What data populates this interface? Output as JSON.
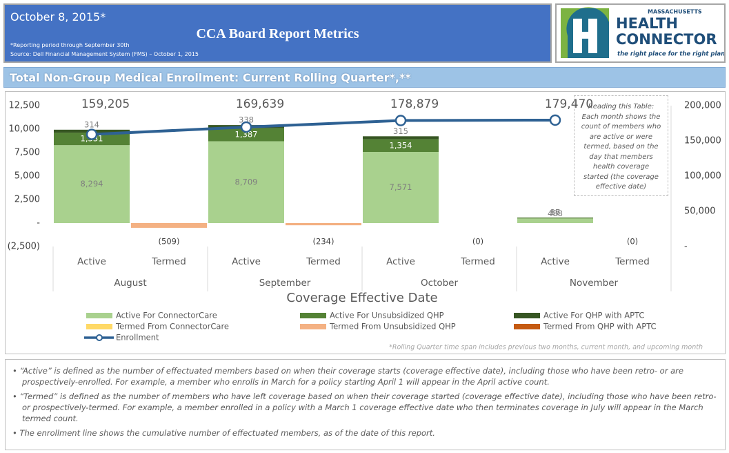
{
  "header": {
    "date": "October 8, 2015*",
    "title": "CCA Board Report Metrics",
    "reporting_note": "*Reporting period through September 30th",
    "source": "Source: Dell Financial Management System (FMS) – October 1, 2015"
  },
  "logo": {
    "state": "MASSACHUSETTS",
    "line1": "HEALTH",
    "line2": "CONNECTOR",
    "tagline": "the right place for the right plan"
  },
  "section_title": "Total Non-Group Medical Enrollment: Current Rolling Quarter*,**",
  "chart_data": {
    "type": "bar",
    "stacked": true,
    "categories": [
      "Active",
      "Termed",
      "Active",
      "Termed",
      "Active",
      "Termed",
      "Active",
      "Termed"
    ],
    "category_groups": [
      "August",
      "September",
      "October",
      "November"
    ],
    "x_label": "Coverage Effective Date",
    "ylim": [
      -2500,
      12500
    ],
    "yticks": [
      {
        "value": 12500,
        "label": "12,500"
      },
      {
        "value": 10000,
        "label": "10,000"
      },
      {
        "value": 7500,
        "label": "7,500"
      },
      {
        "value": 5000,
        "label": "5,000"
      },
      {
        "value": 2500,
        "label": "2,500"
      },
      {
        "value": 0,
        "label": "-"
      },
      {
        "value": -2500,
        "label": "(2,500)"
      }
    ],
    "y2lim": [
      0,
      200000
    ],
    "y2ticks": [
      {
        "value": 200000,
        "label": "200,000"
      },
      {
        "value": 150000,
        "label": "150,000"
      },
      {
        "value": 100000,
        "label": "100,000"
      },
      {
        "value": 50000,
        "label": "50,000"
      },
      {
        "value": 0,
        "label": "-"
      }
    ],
    "series": [
      {
        "name": "Active For ConnectorCare",
        "color": "#a9d18e",
        "values": [
          8294,
          null,
          8709,
          null,
          7571,
          null,
          488,
          null
        ],
        "value_labels": [
          "8,294",
          null,
          "8,709",
          null,
          "7,571",
          null,
          "488",
          null
        ]
      },
      {
        "name": "Active For Unsubsidized QHP",
        "color": "#548235",
        "values": [
          1331,
          null,
          1387,
          null,
          1354,
          null,
          86,
          null
        ],
        "value_labels": [
          "1,331",
          null,
          "1,387",
          null,
          "1,354",
          null,
          "86",
          null
        ]
      },
      {
        "name": "Active For QHP with APTC",
        "color": "#375623",
        "values": [
          314,
          null,
          338,
          null,
          315,
          null,
          17,
          null
        ]
      },
      {
        "name": "Termed From ConnectorCare",
        "color": "#ffd966",
        "values": [
          null,
          null,
          null,
          null,
          null,
          null,
          null,
          null
        ]
      },
      {
        "name": "Termed From Unsubsidized QHP",
        "color": "#f4b183",
        "values": [
          null,
          -509,
          null,
          -234,
          null,
          0,
          null,
          0
        ],
        "value_labels": [
          null,
          "(509)",
          null,
          "(234)",
          null,
          "(0)",
          null,
          "(0)"
        ]
      },
      {
        "name": "Termed From QHP with APTC",
        "color": "#c55a11",
        "values": [
          null,
          null,
          null,
          null,
          null,
          null,
          null,
          null
        ]
      },
      {
        "name": "Enrollment",
        "type": "line",
        "axis": "y2",
        "color": "#2e6193",
        "values": [
          159205,
          null,
          169639,
          null,
          178879,
          null,
          179470,
          null
        ],
        "value_labels": [
          "159,205",
          null,
          "169,639",
          null,
          "178,879",
          null,
          "179,470",
          null
        ]
      }
    ],
    "annotation": "Reading this Table: Each month shows the count of members who are active or were termed, based on the day that members health coverage started (the coverage effective date)",
    "footnote": "*Rolling Quarter time span includes previous two months, current month, and upcoming month"
  },
  "notes": [
    "“Active” is defined as the number of effectuated members based on when their coverage starts (coverage effective date), including those who have been retro- or are prospectively-enrolled. For example, a member who enrolls in March for a policy starting April 1 will appear in the April active count.",
    "“Termed” is defined as the number of members who have left coverage based on when their coverage started (coverage effective date), including those who have been retro- or prospectively-termed. For example, a member enrolled in a policy with a March 1 coverage effective date who then terminates coverage in July will appear in the March termed count.",
    "The enrollment line shows the cumulative number of effectuated members, as of the date of this report."
  ]
}
